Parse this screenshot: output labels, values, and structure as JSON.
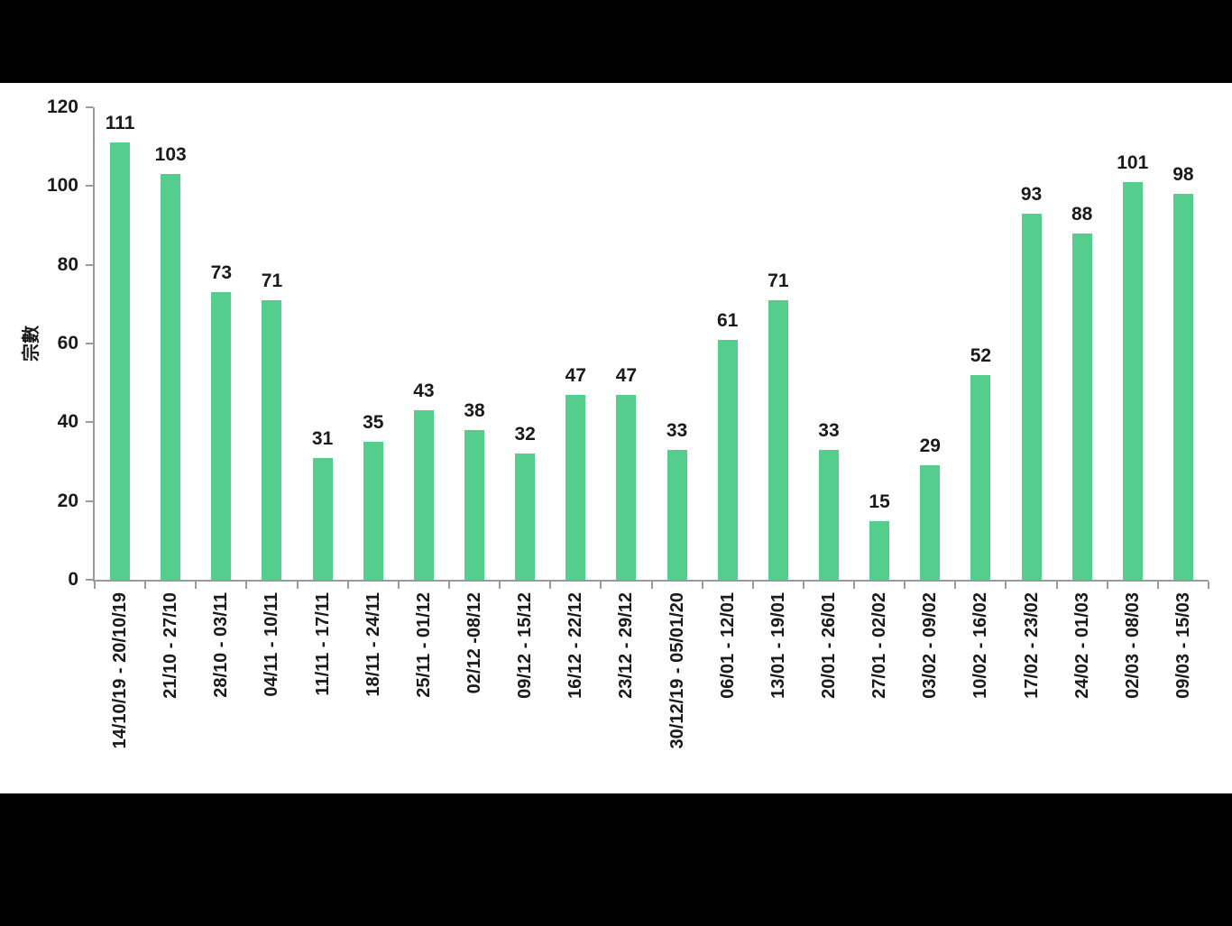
{
  "chart_data": {
    "type": "bar",
    "title": "",
    "xlabel": "",
    "ylabel": "宗數",
    "categories": [
      "14/10/19 - 20/10/19",
      "21/10 - 27/10",
      "28/10 - 03/11",
      "04/11 - 10/11",
      "11/11 - 17/11",
      "18/11 - 24/11",
      "25/11 - 01/12",
      "02/12 -08/12",
      "09/12 - 15/12",
      "16/12 - 22/12",
      "23/12 - 29/12",
      "30/12/19 - 05/01/20",
      "06/01 - 12/01",
      "13/01 - 19/01",
      "20/01 - 26/01",
      "27/01 - 02/02",
      "03/02 - 09/02",
      "10/02 - 16/02",
      "17/02 - 23/02",
      "24/02 - 01/03",
      "02/03 - 08/03",
      "09/03 - 15/03"
    ],
    "values": [
      111,
      103,
      73,
      71,
      31,
      35,
      43,
      38,
      32,
      47,
      47,
      33,
      61,
      71,
      33,
      15,
      29,
      52,
      93,
      88,
      101,
      98
    ],
    "ylim": [
      0,
      120
    ],
    "yticks": [
      0,
      20,
      40,
      60,
      80,
      100,
      120
    ],
    "grid": false,
    "legend": "none",
    "data_labels": true,
    "colors": {
      "bar": "#55CD8C",
      "axis": "#9A9A9A",
      "text": "#1A1A1A",
      "plot_background": "#FFFFFF",
      "letterbox": "#000000"
    }
  }
}
